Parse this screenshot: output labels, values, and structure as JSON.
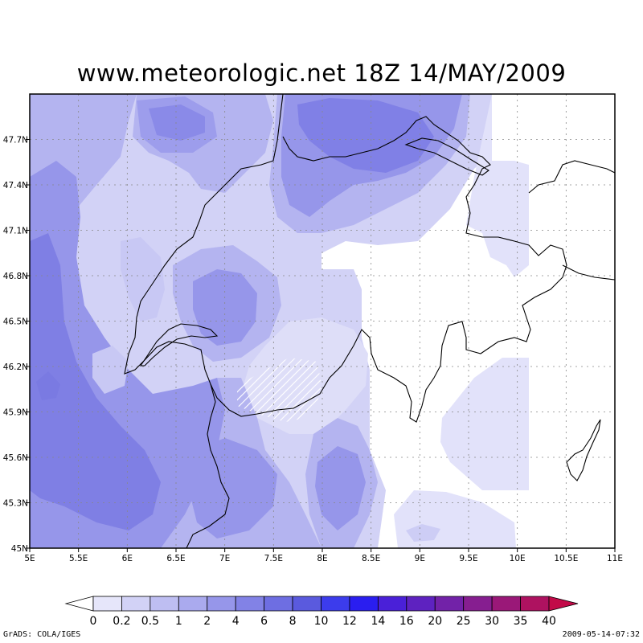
{
  "title": "www.meteorologic.net  18Z 14/MAY/2009",
  "footer": {
    "left": "GrADS: COLA/IGES",
    "right": "2009-05-14-07:32"
  },
  "map": {
    "lon_range": [
      5,
      11
    ],
    "lat_range": [
      45,
      48
    ],
    "x_ticks": [
      {
        "value": 5.0,
        "label": "5E"
      },
      {
        "value": 5.5,
        "label": "5.5E"
      },
      {
        "value": 6.0,
        "label": "6E"
      },
      {
        "value": 6.5,
        "label": "6.5E"
      },
      {
        "value": 7.0,
        "label": "7E"
      },
      {
        "value": 7.5,
        "label": "7.5E"
      },
      {
        "value": 8.0,
        "label": "8E"
      },
      {
        "value": 8.5,
        "label": "8.5E"
      },
      {
        "value": 9.0,
        "label": "9E"
      },
      {
        "value": 9.5,
        "label": "9.5E"
      },
      {
        "value": 10.0,
        "label": "10E"
      },
      {
        "value": 10.5,
        "label": "10.5E"
      },
      {
        "value": 11.0,
        "label": "11E"
      }
    ],
    "y_ticks": [
      {
        "value": 45.0,
        "label": "45N"
      },
      {
        "value": 45.3,
        "label": "45.3N"
      },
      {
        "value": 45.6,
        "label": "45.6N"
      },
      {
        "value": 45.9,
        "label": "45.9N"
      },
      {
        "value": 46.2,
        "label": "46.2N"
      },
      {
        "value": 46.5,
        "label": "46.5N"
      },
      {
        "value": 46.8,
        "label": "46.8N"
      },
      {
        "value": 47.1,
        "label": "47.1N"
      },
      {
        "value": 47.4,
        "label": "47.4N"
      },
      {
        "value": 47.7,
        "label": "47.7N"
      }
    ],
    "grid": true
  },
  "colorbar": {
    "labels": [
      "0",
      "0.2",
      "0.5",
      "1",
      "2",
      "4",
      "6",
      "8",
      "10",
      "12",
      "14",
      "16",
      "20",
      "25",
      "30",
      "35",
      "40"
    ],
    "colors": [
      "#e6e6fa",
      "#d2d2f6",
      "#bebef2",
      "#aaaaee",
      "#9696ea",
      "#8282e6",
      "#6e6ee2",
      "#5a5ade",
      "#3c3cec",
      "#2a1ef0",
      "#4a20d8",
      "#5e22c0",
      "#7222a8",
      "#861e90",
      "#9a1878",
      "#ae1260",
      "#c20a48"
    ]
  }
}
